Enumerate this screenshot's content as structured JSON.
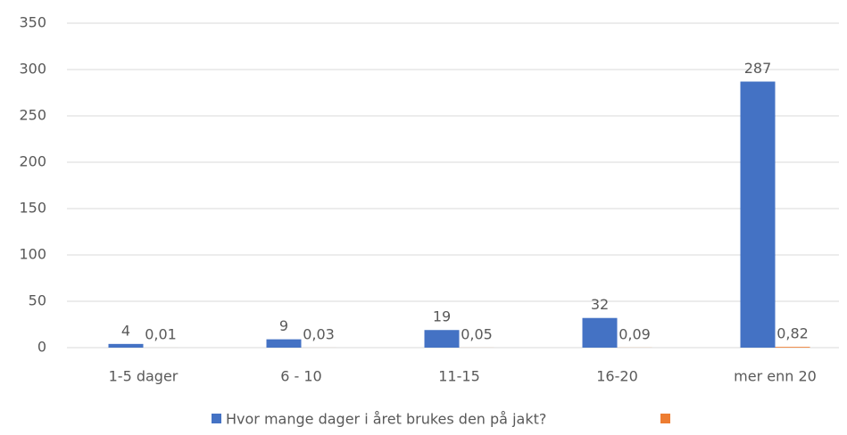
{
  "chart_data": {
    "type": "bar",
    "categories": [
      "1-5 dager",
      "6 - 10",
      "11-15",
      "16-20",
      "mer enn 20"
    ],
    "series": [
      {
        "name": "Hvor mange dager i året brukes den på jakt?",
        "color": "#4472c4",
        "values": [
          4,
          9,
          19,
          32,
          287
        ]
      },
      {
        "color": "#ed7d31",
        "values": [
          0.01,
          0.03,
          0.05,
          0.09,
          0.82
        ],
        "value_labels": [
          "0,01",
          "0,03",
          "0,05",
          "0,09",
          "0,82"
        ]
      }
    ],
    "ylim": [
      0,
      350
    ],
    "yticks": [
      0,
      50,
      100,
      150,
      200,
      250,
      300,
      350
    ],
    "grid": true,
    "legend": "bottom"
  }
}
